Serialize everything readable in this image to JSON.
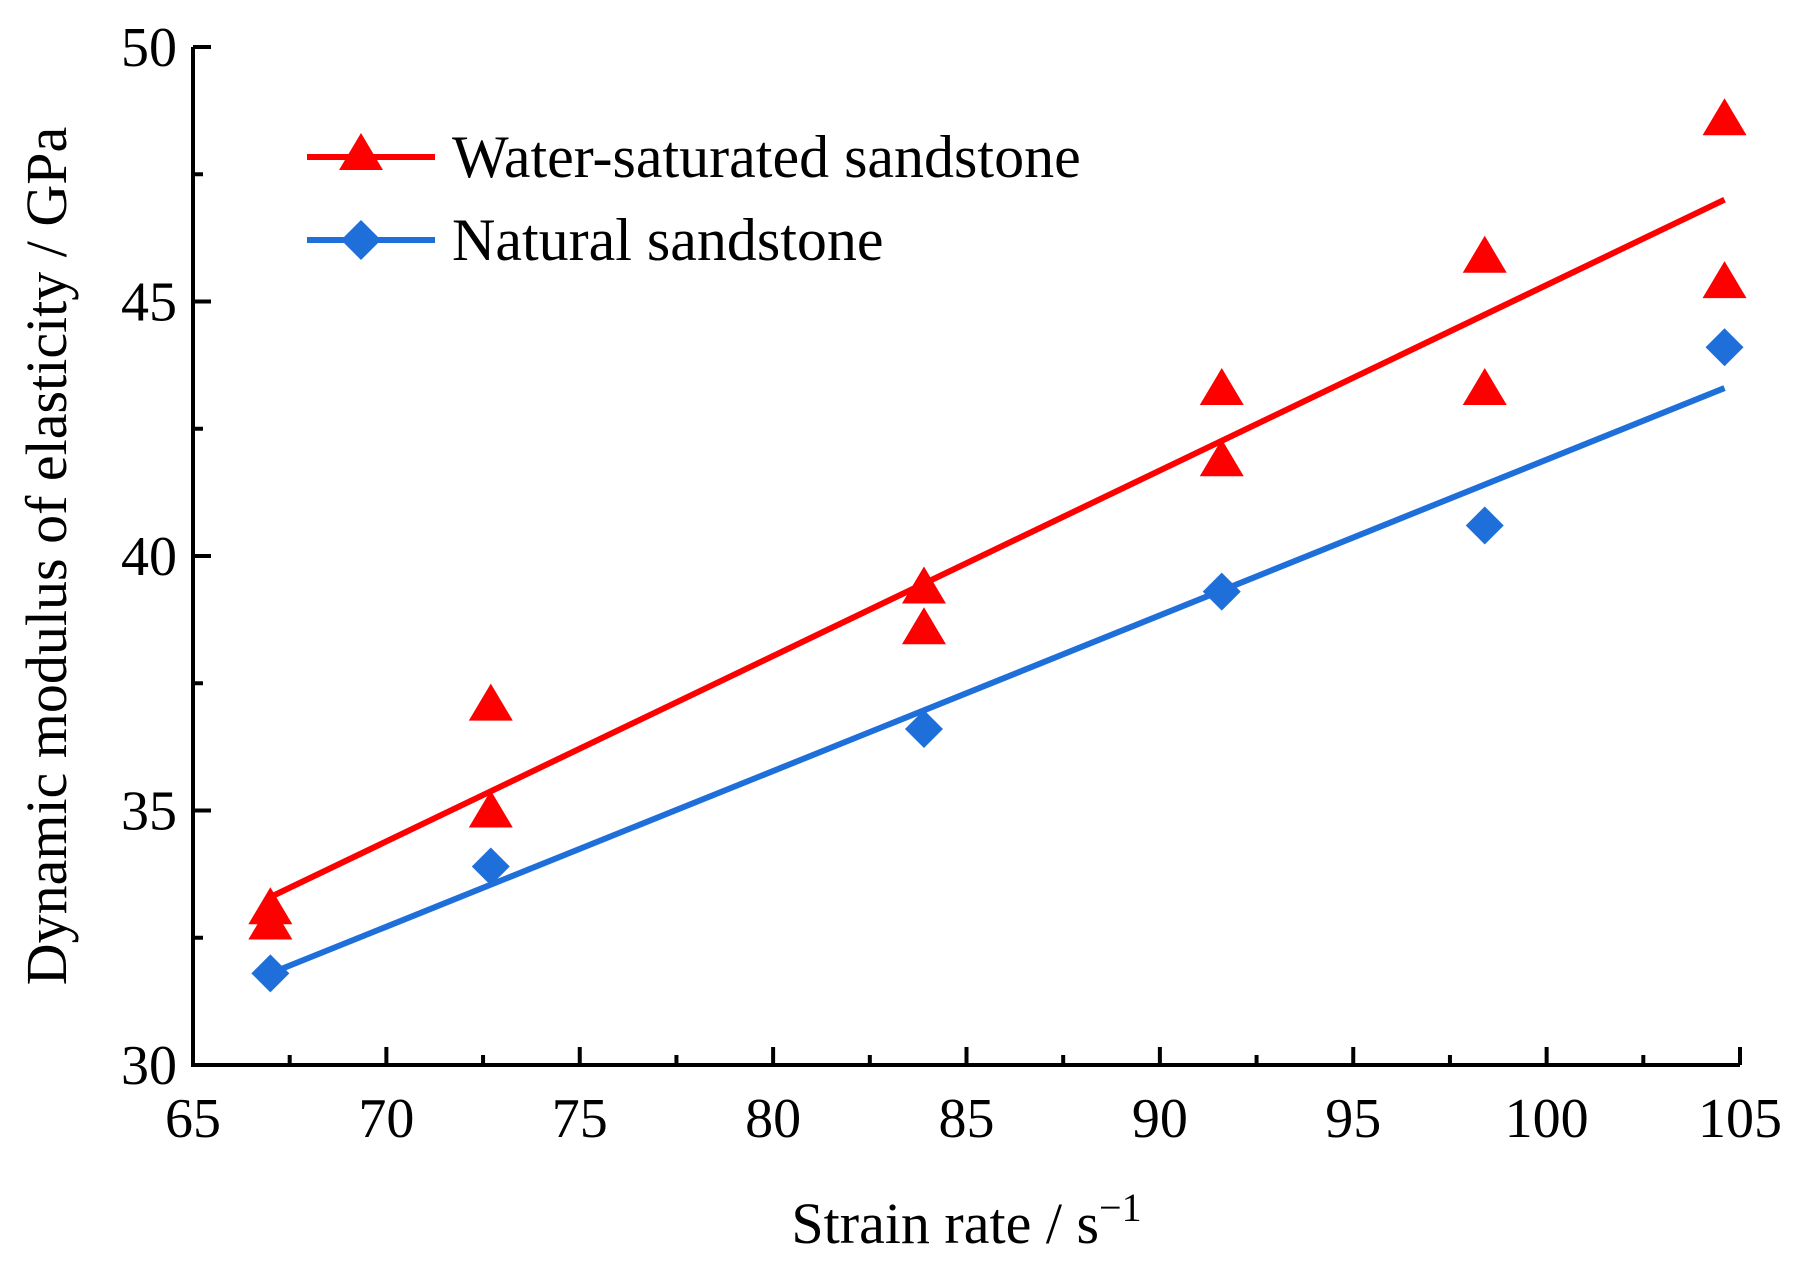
{
  "chart_data": {
    "type": "scatter",
    "title": "",
    "xlabel": "Strain rate / s",
    "xlabel_superscript": "−1",
    "ylabel": "Dynamic modulus of elasticity / GPa",
    "xlim": [
      65,
      105
    ],
    "ylim": [
      30,
      50
    ],
    "x_ticks": [
      65,
      70,
      75,
      80,
      85,
      90,
      95,
      100,
      105
    ],
    "x_tick_labels": [
      "65",
      "70",
      "75",
      "80",
      "85",
      "90",
      "95",
      "100",
      "105"
    ],
    "y_ticks": [
      30,
      35,
      40,
      45,
      50
    ],
    "y_tick_labels": [
      "30",
      "35",
      "40",
      "45",
      "50"
    ],
    "x_minor_step": 2.5,
    "y_minor_step": 2.5,
    "grid": false,
    "legend_position": "top-left",
    "series": [
      {
        "name": "Water-saturated sandstone",
        "marker": "triangle",
        "color": "#ff0000",
        "points": [
          [
            67.0,
            32.8
          ],
          [
            67.0,
            33.1
          ],
          [
            72.7,
            37.1
          ],
          [
            72.7,
            35.0
          ],
          [
            83.9,
            39.4
          ],
          [
            83.9,
            38.6
          ],
          [
            91.6,
            43.3
          ],
          [
            91.6,
            41.9
          ],
          [
            98.4,
            45.9
          ],
          [
            98.4,
            43.3
          ],
          [
            104.6,
            48.6
          ],
          [
            104.6,
            45.4
          ]
        ],
        "fit_line": [
          [
            67.0,
            33.3
          ],
          [
            104.6,
            47.0
          ]
        ]
      },
      {
        "name": "Natural sandstone",
        "marker": "diamond",
        "color": "#1f6fdb",
        "points": [
          [
            67.0,
            31.8
          ],
          [
            72.7,
            33.9
          ],
          [
            83.9,
            36.6
          ],
          [
            91.6,
            39.3
          ],
          [
            98.4,
            40.6
          ],
          [
            104.6,
            44.1
          ]
        ],
        "fit_line": [
          [
            67.0,
            31.8
          ],
          [
            104.6,
            43.3
          ]
        ]
      }
    ]
  }
}
